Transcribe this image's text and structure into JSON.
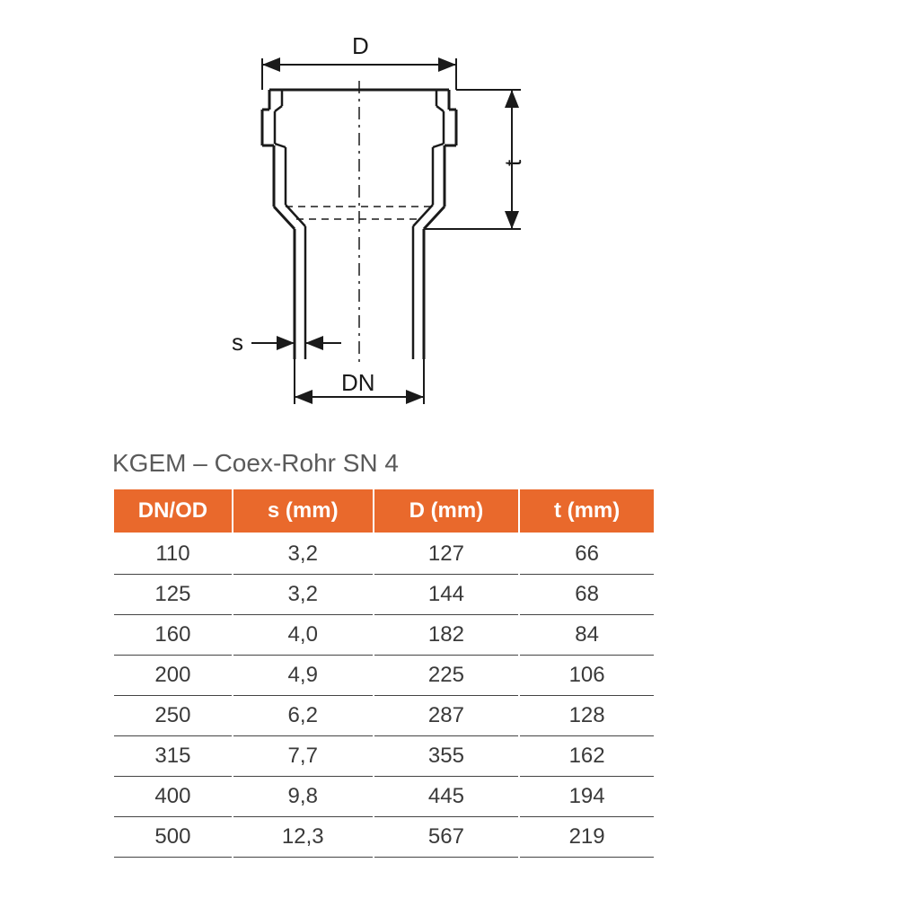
{
  "diagram": {
    "labels": {
      "D": "D",
      "t": "t",
      "s": "s",
      "DN": "DN"
    },
    "stroke_color": "#1a1a1a",
    "stroke_width_main": 3,
    "stroke_width_dim": 2
  },
  "title": "KGEM – Coex-Rohr SN 4",
  "table": {
    "header_bg": "#e9692c",
    "header_fg": "#ffffff",
    "row_border": "#444444",
    "cell_fg": "#3a3a3a",
    "fontsize_header": 24,
    "fontsize_cell": 24,
    "columns": [
      "DN/OD",
      "s (mm)",
      "D (mm)",
      "t (mm)"
    ],
    "col_widths_pct": [
      22,
      26,
      27,
      25
    ],
    "rows": [
      [
        "110",
        "3,2",
        "127",
        "66"
      ],
      [
        "125",
        "3,2",
        "144",
        "68"
      ],
      [
        "160",
        "4,0",
        "182",
        "84"
      ],
      [
        "200",
        "4,9",
        "225",
        "106"
      ],
      [
        "250",
        "6,2",
        "287",
        "128"
      ],
      [
        "315",
        "7,7",
        "355",
        "162"
      ],
      [
        "400",
        "9,8",
        "445",
        "194"
      ],
      [
        "500",
        "12,3",
        "567",
        "219"
      ]
    ]
  }
}
